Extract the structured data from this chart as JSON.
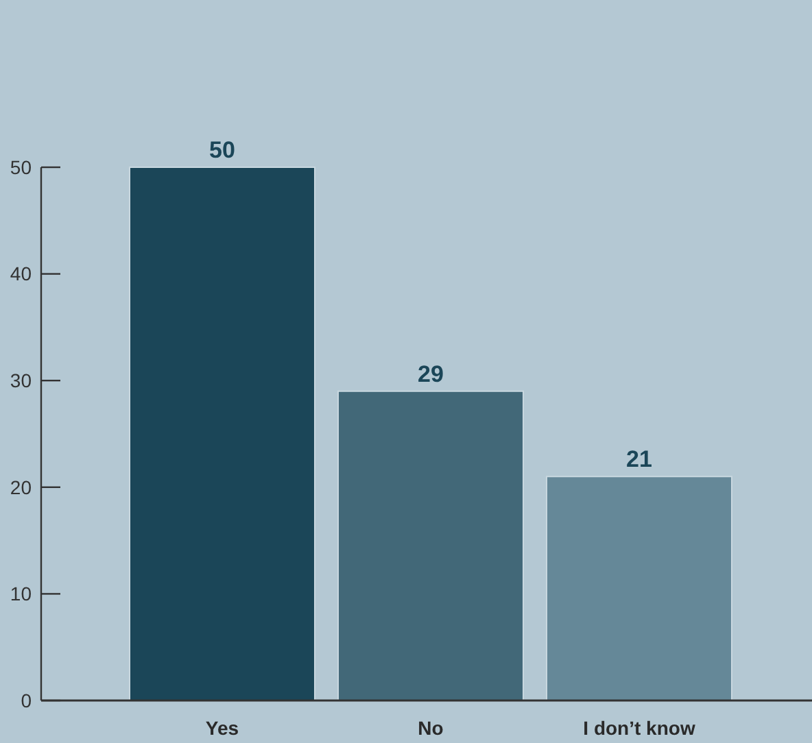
{
  "chart_data": {
    "type": "bar",
    "categories": [
      "Yes",
      "No",
      "I don’t know"
    ],
    "values": [
      50,
      29,
      21
    ],
    "colors": [
      "#1b4658",
      "#426878",
      "#658898"
    ],
    "ylim": [
      0,
      50
    ],
    "yticks": [
      0,
      10,
      20,
      30,
      40,
      50
    ],
    "data_labels": true
  }
}
